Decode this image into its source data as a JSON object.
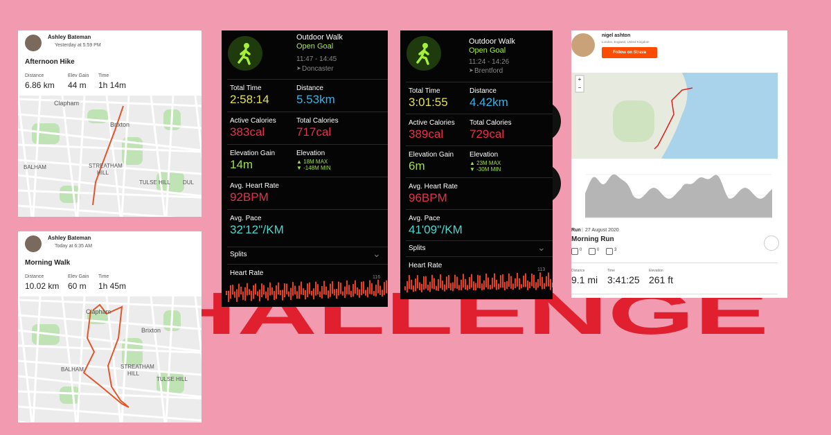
{
  "background": {
    "text": "CHALLENGE"
  },
  "strava_cards": [
    {
      "athlete": "Ashley Bateman",
      "time": "Yesterday at 5:59 PM",
      "title": "Afternoon Hike",
      "stats": [
        {
          "label": "Distance",
          "value": "6.86 km"
        },
        {
          "label": "Elev Gain",
          "value": "44 m"
        },
        {
          "label": "Time",
          "value": "1h 14m"
        }
      ],
      "map_labels": [
        "Clapham",
        "Brixton",
        "BALHAM",
        "STREATHAM",
        "HILL",
        "TULSE HILL",
        "DUL"
      ]
    },
    {
      "athlete": "Ashley Bateman",
      "time": "Today at 6:35 AM",
      "title": "Morning Walk",
      "stats": [
        {
          "label": "Distance",
          "value": "10.02 km"
        },
        {
          "label": "Elev Gain",
          "value": "60 m"
        },
        {
          "label": "Time",
          "value": "1h 45m"
        }
      ],
      "map_labels": [
        "Clapham",
        "Brixton",
        "BALHAM",
        "STREATHAM",
        "HILL",
        "TULSE HILL"
      ]
    }
  ],
  "workouts": [
    {
      "type": "Outdoor Walk",
      "goal": "Open Goal",
      "time": "11:47 - 14:45",
      "location": "Doncaster",
      "total_time": {
        "label": "Total Time",
        "value": "2:58:14"
      },
      "distance": {
        "label": "Distance",
        "value": "5.53km"
      },
      "active_calories": {
        "label": "Active Calories",
        "value": "383cal"
      },
      "total_calories": {
        "label": "Total Calories",
        "value": "717cal"
      },
      "elevation_gain": {
        "label": "Elevation Gain",
        "value": "14m"
      },
      "elevation": {
        "label": "Elevation",
        "max": "▲ 18M MAX",
        "min": "▼ -148M MIN"
      },
      "heart_rate": {
        "label": "Avg. Heart Rate",
        "value": "92BPM"
      },
      "pace": {
        "label": "Avg. Pace",
        "value": "32'12''/KM"
      },
      "splits": "Splits",
      "chart_title": "Heart Rate",
      "chart_max": "116"
    },
    {
      "type": "Outdoor Walk",
      "goal": "Open Goal",
      "time": "11:24 - 14:26",
      "location": "Brentford",
      "total_time": {
        "label": "Total Time",
        "value": "3:01:55"
      },
      "distance": {
        "label": "Distance",
        "value": "4.42km"
      },
      "active_calories": {
        "label": "Active Calories",
        "value": "389cal"
      },
      "total_calories": {
        "label": "Total Calories",
        "value": "729cal"
      },
      "elevation_gain": {
        "label": "Elevation Gain",
        "value": "6m"
      },
      "elevation": {
        "label": "Elevation",
        "max": "▲ 23M MAX",
        "min": "▼ -30M MIN"
      },
      "heart_rate": {
        "label": "Avg. Heart Rate",
        "value": "96BPM"
      },
      "pace": {
        "label": "Avg. Pace",
        "value": "41'09''/KM"
      },
      "splits": "Splits",
      "chart_title": "Heart Rate",
      "chart_max": "113"
    }
  ],
  "strava_run": {
    "athlete": "nigel ashton",
    "location": "London, England, United Kingdom",
    "follow": "Follow on Strava",
    "sport": "Run",
    "date": "27 August 2020",
    "title": "Morning Run",
    "kudos": "0",
    "comments": "0",
    "achievements": "3",
    "stats": [
      {
        "label": "Distance",
        "value": "9.1 mi"
      },
      {
        "label": "Time",
        "value": "3:41:25"
      },
      {
        "label": "Elevation",
        "value": "261 ft"
      }
    ]
  }
}
